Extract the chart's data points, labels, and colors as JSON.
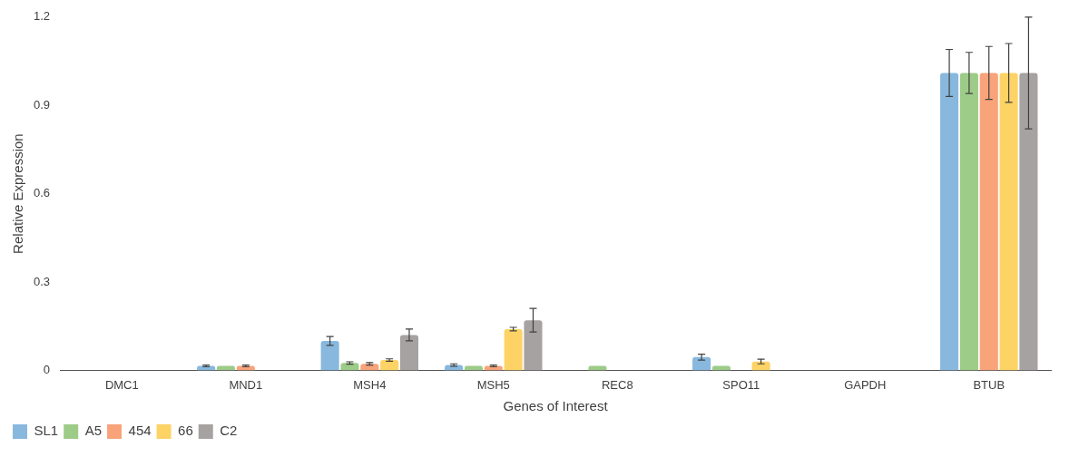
{
  "chart_data": {
    "type": "bar",
    "xlabel": "Genes of Interest",
    "ylabel": "Relative Expression",
    "categories": [
      "DMC1",
      "MND1",
      "MSH4",
      "MSH5",
      "REC8",
      "SPO11",
      "GAPDH",
      "BTUB"
    ],
    "series": [
      {
        "name": "SL1",
        "color": "#88b8de",
        "values": [
          null,
          0.015,
          0.1,
          0.018,
          null,
          0.045,
          null,
          1.01
        ],
        "errors": [
          null,
          0.003,
          0.015,
          0.004,
          null,
          0.01,
          null,
          0.08
        ]
      },
      {
        "name": "A5",
        "color": "#9dcb88",
        "values": [
          null,
          0.015,
          0.025,
          0.015,
          0.015,
          0.015,
          null,
          1.01
        ],
        "errors": [
          null,
          null,
          0.004,
          null,
          null,
          null,
          null,
          0.07
        ]
      },
      {
        "name": "454",
        "color": "#f8a37a",
        "values": [
          null,
          0.015,
          0.022,
          0.015,
          null,
          null,
          null,
          1.01
        ],
        "errors": [
          null,
          0.003,
          0.004,
          0.003,
          null,
          null,
          null,
          0.09
        ]
      },
      {
        "name": "66",
        "color": "#fdd365",
        "values": [
          null,
          null,
          0.035,
          0.14,
          null,
          0.03,
          null,
          1.01
        ],
        "errors": [
          null,
          null,
          0.004,
          0.006,
          null,
          0.008,
          null,
          0.1
        ]
      },
      {
        "name": "C2",
        "color": "#a6a2a1",
        "values": [
          null,
          null,
          0.12,
          0.17,
          null,
          null,
          null,
          1.01
        ],
        "errors": [
          null,
          null,
          0.02,
          0.04,
          null,
          null,
          null,
          0.19
        ]
      }
    ],
    "ylim": [
      0,
      1.2
    ],
    "yticks": [
      0,
      0.3,
      0.6,
      0.9,
      1.2
    ],
    "grid": false,
    "legend": "bottom left"
  }
}
